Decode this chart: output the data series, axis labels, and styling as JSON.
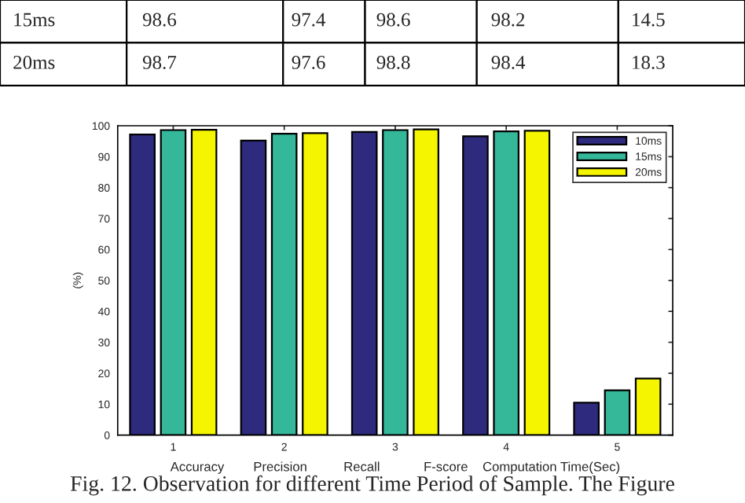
{
  "chart_data": {
    "type": "bar",
    "ylabel": "(%)",
    "xlabel": "Accuracy        Precision          Recall            F-score    Computation Time(Sec)",
    "categories": [
      "1",
      "2",
      "3",
      "4",
      "5"
    ],
    "series": [
      {
        "name": "10ms",
        "color": "#2e2a7e",
        "values": [
          97.2,
          95.2,
          98.0,
          96.6,
          10.5
        ],
        "value_labels": [
          null,
          null,
          null,
          null,
          null
        ]
      },
      {
        "name": "15ms",
        "color": "#35b79a",
        "values": [
          98.6,
          97.4,
          98.6,
          98.2,
          14.5
        ],
        "value_labels": [
          "98.6",
          "97.4",
          "98.6",
          "98.2",
          "14.5"
        ]
      },
      {
        "name": "20ms",
        "color": "#f5f500",
        "values": [
          98.7,
          97.6,
          98.8,
          98.4,
          18.3
        ],
        "value_labels": [
          "98.7",
          "97.6",
          "98.8",
          "98.4",
          "18.3"
        ]
      }
    ],
    "ylim": [
      0,
      100
    ],
    "yticks": [
      0,
      10,
      20,
      30,
      40,
      50,
      60,
      70,
      80,
      90,
      100
    ],
    "legend": "top right",
    "grid": false,
    "annotations": [
      "Fig. 12. Observation for different Time Period of Sample. The Figure"
    ]
  }
}
